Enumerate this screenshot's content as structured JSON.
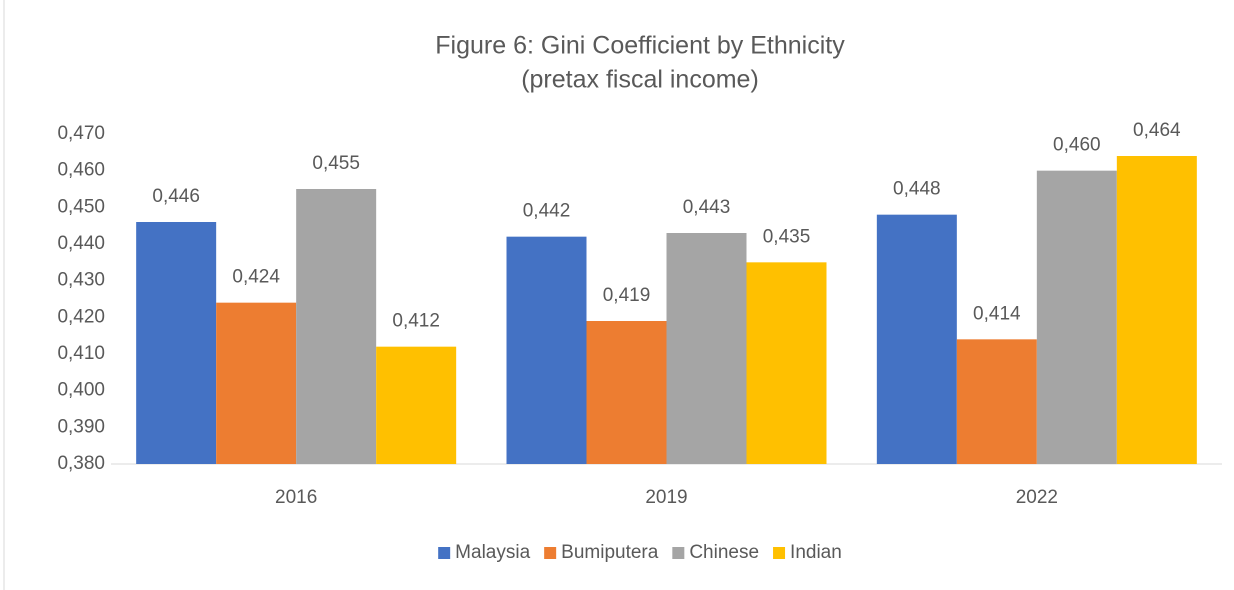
{
  "chart_data": {
    "type": "bar",
    "title": "Figure 6: Gini Coefficient by Ethnicity",
    "subtitle": "(pretax fiscal income)",
    "categories": [
      "2016",
      "2019",
      "2022"
    ],
    "series": [
      {
        "name": "Malaysia",
        "color": "#4472c4",
        "values": [
          0.446,
          0.442,
          0.448
        ],
        "value_labels": [
          "0,446",
          "0,442",
          "0,448"
        ]
      },
      {
        "name": "Bumiputera",
        "color": "#ed7d31",
        "values": [
          0.424,
          0.419,
          0.414
        ],
        "value_labels": [
          "0,424",
          "0,419",
          "0,414"
        ]
      },
      {
        "name": "Chinese",
        "color": "#a5a5a5",
        "values": [
          0.455,
          0.443,
          0.46
        ],
        "value_labels": [
          "0,455",
          "0,443",
          "0,460"
        ]
      },
      {
        "name": "Indian",
        "color": "#ffc000",
        "values": [
          0.412,
          0.435,
          0.464
        ],
        "value_labels": [
          "0,412",
          "0,435",
          "0,464"
        ]
      }
    ],
    "ylim": [
      0.38,
      0.47
    ],
    "yticks": [
      {
        "value": 0.38,
        "label": "0,380"
      },
      {
        "value": 0.39,
        "label": "0,390"
      },
      {
        "value": 0.4,
        "label": "0,400"
      },
      {
        "value": 0.41,
        "label": "0,410"
      },
      {
        "value": 0.42,
        "label": "0,420"
      },
      {
        "value": 0.43,
        "label": "0,430"
      },
      {
        "value": 0.44,
        "label": "0,440"
      },
      {
        "value": 0.45,
        "label": "0,450"
      },
      {
        "value": 0.46,
        "label": "0,460"
      },
      {
        "value": 0.47,
        "label": "0,470"
      }
    ],
    "grid": false,
    "legend": "bottom"
  }
}
